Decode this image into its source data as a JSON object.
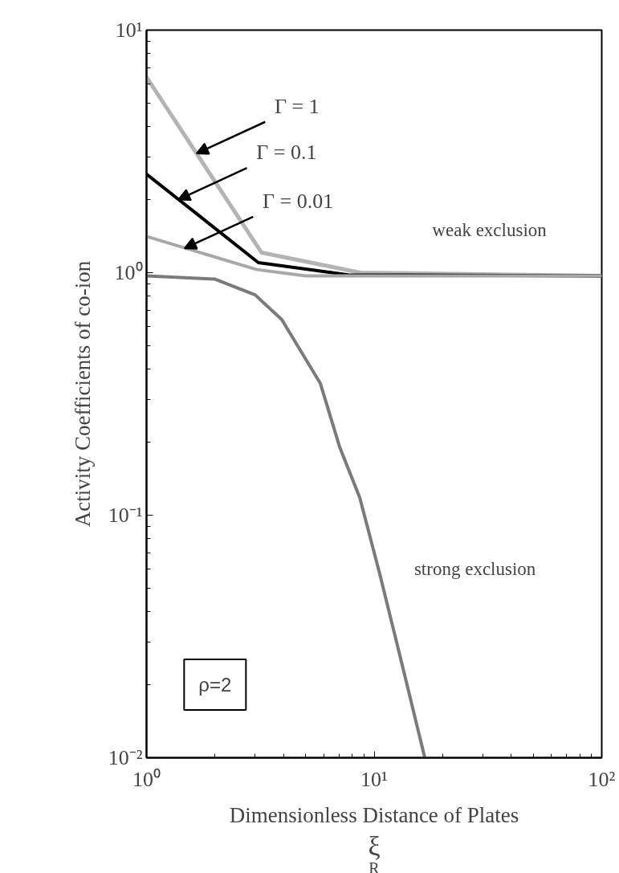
{
  "chart_data": {
    "type": "line",
    "xlabel": "Dimensionless Distance of Plates",
    "ylabel": "Activity Coefficients of co-ion",
    "log": "xy",
    "grid": false,
    "marker": "none",
    "line_style": "solid",
    "xlim": [
      1,
      100
    ],
    "ylim": [
      0.01,
      10
    ],
    "xticks": [
      {
        "value": 1,
        "label": "10⁰"
      },
      {
        "value": 10,
        "label": "10¹"
      },
      {
        "value": 100,
        "label": "10²"
      }
    ],
    "yticks": [
      {
        "value": 0.01,
        "label": "10⁻²"
      },
      {
        "value": 0.1,
        "label": "10⁻¹"
      },
      {
        "value": 1,
        "label": "10⁰"
      },
      {
        "value": 10,
        "label": "10¹"
      }
    ],
    "series": [
      {
        "color": "#b4b4b4",
        "x": [
          1,
          3.2,
          8.7,
          100
        ],
        "values": [
          6.4,
          1.21,
          1.0,
          0.97
        ]
      },
      {
        "color": "#000000",
        "x": [
          1,
          3.1,
          7.7,
          100
        ],
        "values": [
          2.55,
          1.1,
          0.98,
          0.97
        ]
      },
      {
        "color": "#a8a8a8",
        "x": [
          1,
          3.05,
          5,
          100
        ],
        "values": [
          1.41,
          1.03,
          0.97,
          0.97
        ]
      },
      {
        "color": "#7a7a7a",
        "x": [
          1,
          2.0,
          3.0,
          3.93,
          5.8,
          7.07,
          8.65,
          10.6,
          12.9,
          16.7
        ],
        "values": [
          0.97,
          0.94,
          0.81,
          0.64,
          0.35,
          0.19,
          0.118,
          0.057,
          0.027,
          0.01
        ]
      }
    ],
    "annotations": [
      {
        "text": "Γ = 1",
        "x": 1.66,
        "y": 3.1
      },
      {
        "text": "Γ = 0.1",
        "x": 1.38,
        "y": 2.0
      },
      {
        "text": "Γ = 0.01",
        "x": 1.47,
        "y": 1.26
      },
      "weak exclusion",
      "strong exclusion",
      "ρ=2",
      "ξ$_{R}$"
    ]
  }
}
